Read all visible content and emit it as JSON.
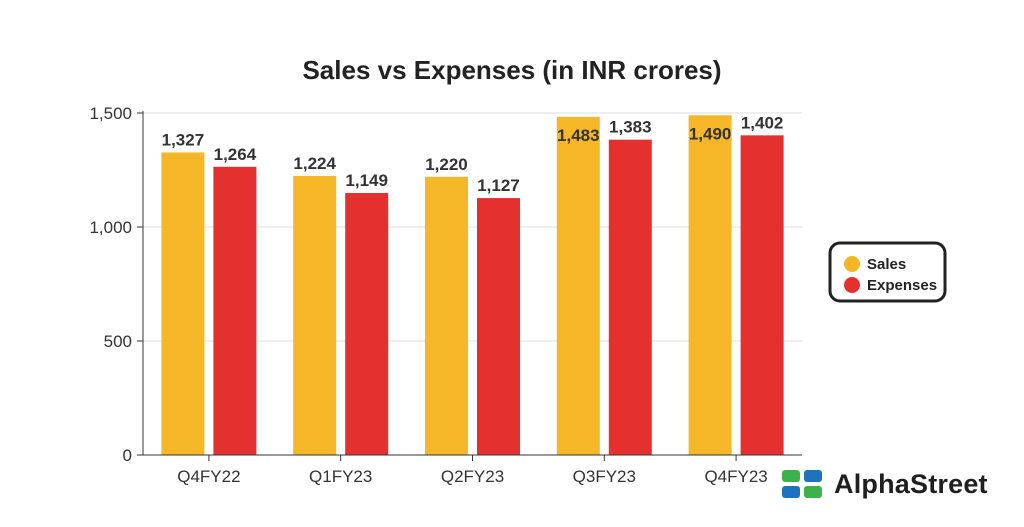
{
  "chart_data": {
    "type": "bar",
    "title": "Sales vs Expenses (in INR crores)",
    "categories": [
      "Q4FY22",
      "Q1FY23",
      "Q2FY23",
      "Q3FY23",
      "Q4FY23"
    ],
    "series": [
      {
        "name": "Sales",
        "color": "#F5B727",
        "values": [
          1327,
          1224,
          1220,
          1483,
          1490
        ],
        "labels": [
          "1,327",
          "1,224",
          "1,220",
          "1,483",
          "1,490"
        ]
      },
      {
        "name": "Expenses",
        "color": "#E53030",
        "values": [
          1264,
          1149,
          1127,
          1383,
          1402
        ],
        "labels": [
          "1,264",
          "1,149",
          "1,127",
          "1,383",
          "1,402"
        ]
      }
    ],
    "yticks": [
      0,
      500,
      1000,
      1500
    ],
    "ytick_labels": [
      "0",
      "500",
      "1,000",
      "1,500"
    ],
    "ylim": [
      0,
      1500
    ],
    "xlabel": "",
    "ylabel": "",
    "grid": true,
    "legend_position": "right"
  },
  "brand": {
    "name": "AlphaStreet",
    "logo_icon": "alphastreet-logo-icon",
    "logo_colors": [
      "#3DB24B",
      "#1E73BE"
    ]
  }
}
